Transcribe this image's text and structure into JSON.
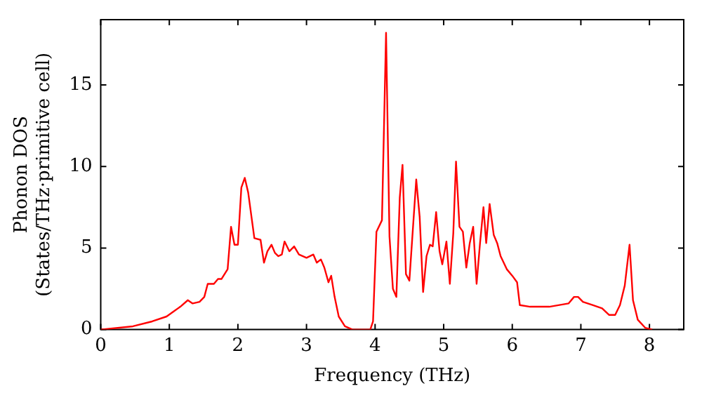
{
  "chart_data": {
    "type": "line",
    "xlabel": "Frequency (THz)",
    "ylabel": "Phonon DOS\n(States/THz·primitive cell)",
    "xlim": [
      0,
      8.5
    ],
    "ylim": [
      0,
      19
    ],
    "xticks": [
      0,
      1,
      2,
      3,
      4,
      5,
      6,
      7,
      8
    ],
    "yticks": [
      0,
      5,
      10,
      15
    ],
    "grid": false,
    "series": [
      {
        "color": "#ff0000",
        "x": [
          0,
          0.47,
          0.75,
          0.96,
          1.06,
          1.16,
          1.27,
          1.34,
          1.44,
          1.51,
          1.56,
          1.65,
          1.71,
          1.76,
          1.85,
          1.9,
          1.95,
          2.0,
          2.05,
          2.1,
          2.15,
          2.24,
          2.33,
          2.38,
          2.43,
          2.49,
          2.54,
          2.59,
          2.64,
          2.68,
          2.75,
          2.82,
          2.89,
          3.0,
          3.1,
          3.15,
          3.21,
          3.26,
          3.32,
          3.36,
          3.41,
          3.47,
          3.56,
          3.67,
          3.93,
          3.97,
          4.02,
          4.1,
          4.16,
          4.21,
          4.26,
          4.31,
          4.36,
          4.4,
          4.45,
          4.5,
          4.6,
          4.65,
          4.7,
          4.75,
          4.8,
          4.84,
          4.89,
          4.94,
          4.98,
          5.04,
          5.09,
          5.14,
          5.18,
          5.23,
          5.28,
          5.33,
          5.38,
          5.43,
          5.48,
          5.53,
          5.58,
          5.62,
          5.67,
          5.73,
          5.78,
          5.83,
          5.92,
          6.0,
          6.07,
          6.11,
          6.26,
          6.54,
          6.82,
          6.9,
          6.96,
          7.03,
          7.17,
          7.31,
          7.41,
          7.5,
          7.57,
          7.64,
          7.71,
          7.76,
          7.83,
          7.94,
          8.04
        ],
        "values": [
          0,
          0.2,
          0.5,
          0.8,
          1.1,
          1.4,
          1.8,
          1.6,
          1.7,
          2.0,
          2.8,
          2.8,
          3.1,
          3.1,
          3.7,
          6.3,
          5.2,
          5.2,
          8.7,
          9.3,
          8.4,
          5.6,
          5.5,
          4.1,
          4.8,
          5.2,
          4.7,
          4.5,
          4.6,
          5.4,
          4.8,
          5.1,
          4.6,
          4.4,
          4.6,
          4.1,
          4.3,
          3.8,
          2.9,
          3.3,
          2.0,
          0.8,
          0.2,
          0,
          0,
          0.5,
          6.0,
          6.7,
          18.2,
          5.7,
          2.5,
          2.0,
          8.1,
          10.1,
          3.4,
          3.0,
          9.2,
          6.9,
          2.3,
          4.5,
          5.2,
          5.1,
          7.2,
          4.8,
          4.0,
          5.4,
          2.8,
          5.9,
          10.3,
          6.3,
          6.0,
          3.8,
          5.3,
          6.3,
          2.8,
          5.3,
          7.5,
          5.3,
          7.7,
          5.8,
          5.3,
          4.5,
          3.7,
          3.3,
          2.9,
          1.5,
          1.4,
          1.4,
          1.6,
          2.0,
          2.0,
          1.7,
          1.5,
          1.3,
          0.9,
          0.9,
          1.5,
          2.7,
          5.2,
          1.8,
          0.6,
          0.1,
          0
        ]
      }
    ]
  }
}
